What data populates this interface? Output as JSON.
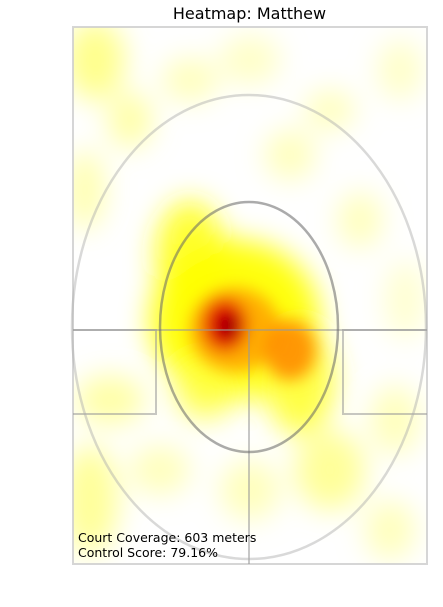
{
  "chart_data": {
    "type": "heatmap",
    "title": "Heatmap: Matthew",
    "subject": "Matthew",
    "colormap": [
      "#ffffff",
      "#ffff00",
      "#ff8c00",
      "#ff0000",
      "#000000"
    ],
    "hotspots": [
      {
        "x": 0.44,
        "y": 0.56,
        "intensity": 1.0
      },
      {
        "x": 0.46,
        "y": 0.5,
        "intensity": 0.75
      },
      {
        "x": 0.62,
        "y": 0.62,
        "intensity": 0.75
      },
      {
        "x": 0.34,
        "y": 0.42,
        "intensity": 0.55
      },
      {
        "x": 0.2,
        "y": 0.32,
        "intensity": 0.3
      },
      {
        "x": 0.72,
        "y": 0.7,
        "intensity": 0.4
      },
      {
        "x": 0.6,
        "y": 0.86,
        "intensity": 0.35
      }
    ],
    "annotations": {
      "coverage": "Court Coverage: 603 meters",
      "control": "Control Score: 79.16%"
    }
  }
}
